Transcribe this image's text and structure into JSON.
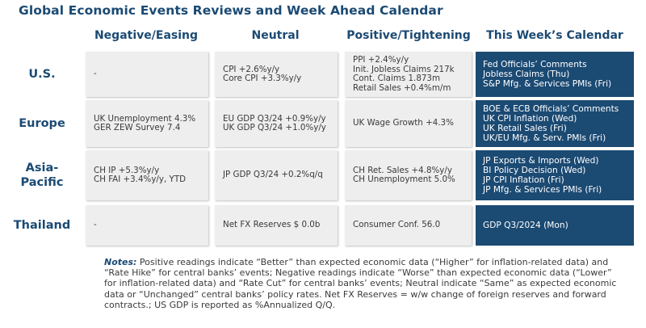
{
  "title": "Global Economic Events Reviews and Week Ahead Calendar",
  "columns": [
    "Negative/Easing",
    "Neutral",
    "Positive/Tightening",
    "This Week’s Calendar"
  ],
  "rows": [
    {
      "region": "U.S.",
      "negative": [
        "-"
      ],
      "neutral": [
        "CPI +2.6%y/y",
        "Core CPI +3.3%y/y"
      ],
      "positive": [
        "PPI +2.4%y/y",
        "Init. Jobless Claims 217k",
        "Cont. Claims 1.873m",
        "Retail Sales +0.4%m/m"
      ],
      "calendar": [
        "Fed Officials’ Comments",
        "Jobless Claims (Thu)",
        "S&P Mfg. & Services PMIs (Fri)"
      ]
    },
    {
      "region": "Europe",
      "negative": [
        "UK Unemployment 4.3%",
        "GER ZEW Survey 7.4"
      ],
      "neutral": [
        "EU GDP Q3/24 +0.9%y/y",
        "UK GDP Q3/24 +1.0%y/y"
      ],
      "positive": [
        "UK Wage Growth +4.3%"
      ],
      "calendar": [
        "BOE & ECB Officials’ Comments",
        "UK CPI Inflation (Wed)",
        "UK Retail Sales (Fri)",
        "UK/EU Mfg. & Serv. PMIs (Fri)"
      ]
    },
    {
      "region": "Asia-\nPacific",
      "negative": [
        "CH IP +5.3%y/y",
        "CH FAI +3.4%y/y, YTD"
      ],
      "neutral": [
        "JP GDP Q3/24 +0.2%q/q"
      ],
      "positive": [
        "CH Ret. Sales +4.8%y/y",
        "CH Unemployment 5.0%"
      ],
      "calendar": [
        "JP Exports & Imports (Wed)",
        "BI Policy Decision (Wed)",
        "JP CPI Inflation (Fri)",
        "JP Mfg. & Services PMIs (Fri)"
      ]
    },
    {
      "region": "Thailand",
      "negative": [
        "-"
      ],
      "neutral": [
        "Net FX Reserves $ 0.0b"
      ],
      "positive": [
        "Consumer Conf. 56.0"
      ],
      "calendar": [
        "GDP Q3/2024 (Mon)"
      ]
    }
  ],
  "notes": {
    "label": "Notes:",
    "text": " Positive readings indicate “Better” than expected economic data (“Higher” for inflation-related data) and “Rate Hike” for central banks’ events; Negative readings indicate “Worse” than expected economic data (“Lower” for inflation-related data) and “Rate Cut” for central banks’ events; Neutral indicate “Same” as expected economic data or “Unchanged” central banks’ policy rates. Net FX Reserves = w/w change of foreign reserves and forward contracts.; US GDP is reported as %Annualized Q/Q."
  }
}
